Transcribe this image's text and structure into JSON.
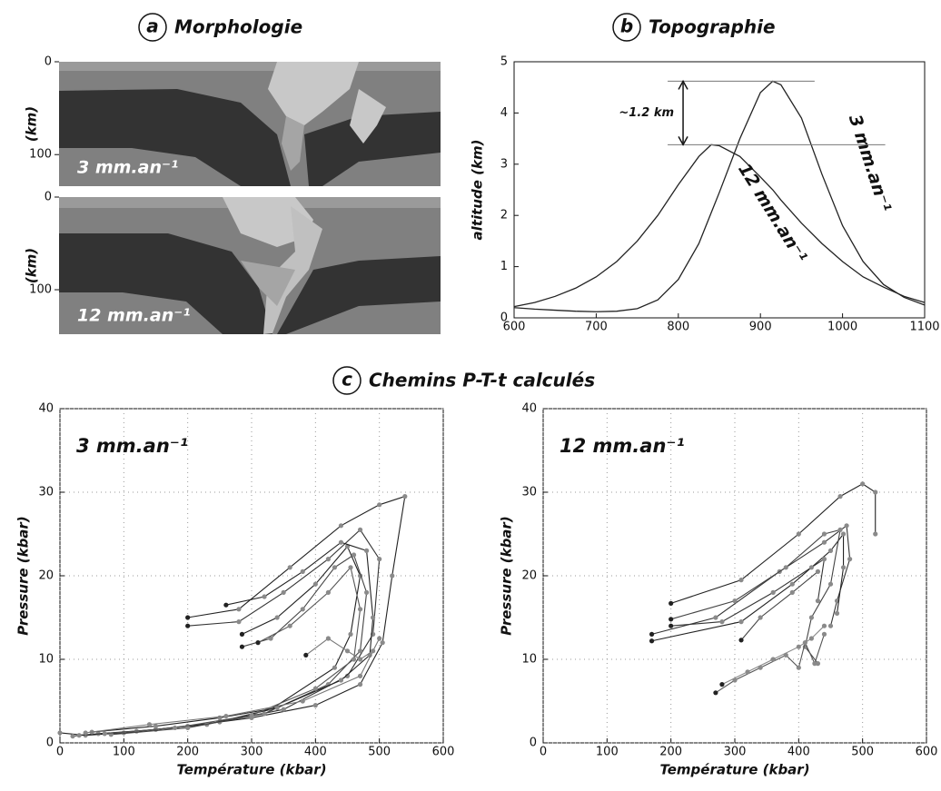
{
  "panel_titles": [
    {
      "letter": "a",
      "title": "Morphologie"
    },
    {
      "letter": "b",
      "title": "Topographie"
    },
    {
      "letter": "c",
      "title": "Chemins P-T-t calculés"
    }
  ],
  "chart_data": [
    {
      "type": "section",
      "label": "3 mm.an⁻¹",
      "ylabel": "(km)",
      "ylim": [
        0,
        134
      ],
      "yticks": [
        0,
        100
      ]
    },
    {
      "type": "section",
      "label": "12 mm.an⁻¹",
      "ylabel": "(km)",
      "ylim": [
        0,
        148
      ],
      "yticks": [
        0,
        100
      ]
    },
    {
      "type": "line",
      "ylabel": "altitude (km)",
      "x": [
        600,
        625,
        650,
        675,
        700,
        725,
        750,
        775,
        800,
        825,
        840,
        850,
        875,
        900,
        915,
        925,
        950,
        975,
        1000,
        1025,
        1050,
        1075,
        1100
      ],
      "xlim": [
        600,
        1100
      ],
      "xticks": [
        600,
        700,
        800,
        900,
        1000,
        1100
      ],
      "ylim": [
        0,
        5
      ],
      "yticks": [
        0,
        1,
        2,
        3,
        4,
        5
      ],
      "grid": false,
      "series": [
        {
          "name": "3 mm.an⁻¹",
          "color": "#222222",
          "values": [
            0.22,
            0.3,
            0.42,
            0.58,
            0.8,
            1.1,
            1.5,
            2.0,
            2.6,
            3.15,
            3.38,
            3.36,
            3.15,
            2.75,
            2.5,
            2.3,
            1.85,
            1.45,
            1.1,
            0.8,
            0.6,
            0.42,
            0.3
          ]
        },
        {
          "name": "12 mm.an⁻¹",
          "color": "#222222",
          "values": [
            0.2,
            0.17,
            0.15,
            0.13,
            0.12,
            0.13,
            0.18,
            0.35,
            0.75,
            1.45,
            2.05,
            2.45,
            3.5,
            4.4,
            4.62,
            4.55,
            3.9,
            2.8,
            1.8,
            1.1,
            0.65,
            0.4,
            0.25
          ]
        }
      ],
      "annotation": "~1.2 km",
      "reference_lines": [
        {
          "value": 3.38,
          "xlim": [
            787,
            1052
          ]
        },
        {
          "value": 4.62,
          "xlim": [
            787,
            966
          ]
        }
      ]
    },
    {
      "type": "paths",
      "title": "3 mm.an⁻¹",
      "xlabel": "Température (kbar)",
      "ylabel": "Pressure (kbar)",
      "xlim": [
        0,
        600
      ],
      "xticks": [
        0,
        100,
        200,
        300,
        400,
        500,
        600
      ],
      "ylim": [
        0,
        40
      ],
      "yticks": [
        0,
        10,
        20,
        30,
        40
      ],
      "grid": true,
      "series": [
        {
          "color": "#222222",
          "x": [
            200,
            280,
            360,
            440,
            500,
            540,
            520,
            505,
            470,
            400,
            300,
            200,
            100,
            40,
            0
          ],
          "values": [
            15,
            16,
            21,
            26,
            28.5,
            29.5,
            20,
            12,
            7,
            4.5,
            3,
            2,
            1.2,
            0.9,
            1.2
          ]
        },
        {
          "color": "#333333",
          "x": [
            200,
            280,
            350,
            420,
            470,
            500,
            490,
            450,
            350,
            250,
            150,
            60,
            20
          ],
          "values": [
            14,
            14.5,
            18,
            22,
            25.5,
            22,
            13,
            8,
            4,
            2.5,
            1.6,
            1.1,
            0.8
          ]
        },
        {
          "color": "#222222",
          "x": [
            285,
            340,
            400,
            450,
            470,
            455,
            430,
            330,
            230,
            120,
            30
          ],
          "values": [
            13,
            15,
            19,
            23.5,
            20,
            13,
            9,
            4,
            2.2,
            1.4,
            0.9
          ]
        },
        {
          "color": "#444444",
          "x": [
            285,
            330,
            380,
            430,
            460,
            480,
            470,
            420,
            320,
            200,
            80
          ],
          "values": [
            11.5,
            12.5,
            16,
            21,
            22.5,
            18,
            11,
            7,
            3.5,
            1.8,
            1
          ]
        },
        {
          "color": "#222222",
          "x": [
            260,
            320,
            380,
            440,
            480,
            490,
            485,
            440,
            340,
            250,
            150,
            50
          ],
          "values": [
            16.5,
            17.5,
            20.5,
            24,
            23,
            15,
            10.5,
            7.5,
            4.2,
            3,
            2,
            1.3
          ]
        },
        {
          "color": "#555555",
          "x": [
            310,
            360,
            420,
            455,
            470,
            460,
            400,
            300,
            180,
            70
          ],
          "values": [
            12,
            14,
            18,
            21,
            16,
            10,
            6.5,
            3.3,
            1.8,
            1.1
          ]
        },
        {
          "color": "#777777",
          "x": [
            385,
            420,
            450,
            470,
            490,
            500,
            470,
            380,
            260,
            140,
            40
          ],
          "values": [
            10.5,
            12.5,
            11,
            10,
            11,
            12.5,
            8,
            5,
            3.2,
            2.2,
            1.2
          ]
        }
      ]
    },
    {
      "type": "paths",
      "title": "12 mm.an⁻¹",
      "xlabel": "Température (kbar)",
      "ylabel": "Pressure (kbar)",
      "xlim": [
        0,
        600
      ],
      "xticks": [
        0,
        100,
        200,
        300,
        400,
        500,
        600
      ],
      "ylim": [
        0,
        40
      ],
      "yticks": [
        0,
        10,
        20,
        30,
        40
      ],
      "grid": true,
      "series": [
        {
          "color": "#222222",
          "x": [
            200,
            310,
            400,
            465,
            500,
            520,
            520
          ],
          "values": [
            16.7,
            19.5,
            25,
            29.5,
            31,
            30,
            25
          ]
        },
        {
          "color": "#333333",
          "x": [
            170,
            270,
            370,
            440,
            475,
            480,
            460,
            450
          ],
          "values": [
            13,
            15,
            20.5,
            24,
            26,
            22,
            17,
            14
          ]
        },
        {
          "color": "#222222",
          "x": [
            170,
            310,
            390,
            450,
            470,
            470,
            460
          ],
          "values": [
            12.2,
            14.5,
            19,
            23,
            25,
            21,
            15.5
          ]
        },
        {
          "color": "#444444",
          "x": [
            200,
            300,
            380,
            440,
            465,
            450,
            420,
            410,
            430
          ],
          "values": [
            14.8,
            17,
            21,
            25,
            25.5,
            19,
            15,
            11.5,
            9.5
          ]
        },
        {
          "color": "#333333",
          "x": [
            200,
            280,
            360,
            420,
            440,
            430
          ],
          "values": [
            14,
            14.5,
            18,
            21,
            22,
            17
          ]
        },
        {
          "color": "#555555",
          "x": [
            270,
            300,
            340,
            380,
            400,
            410,
            425,
            440
          ],
          "values": [
            6,
            7.5,
            9,
            10.5,
            9,
            12,
            9.5,
            13
          ]
        },
        {
          "color": "#444444",
          "x": [
            310,
            340,
            390,
            430
          ],
          "values": [
            12.3,
            15,
            18,
            20.5
          ]
        },
        {
          "color": "#888888",
          "x": [
            280,
            320,
            360,
            400,
            420,
            440
          ],
          "values": [
            7,
            8.5,
            10,
            11.5,
            12.5,
            14
          ]
        }
      ]
    }
  ]
}
